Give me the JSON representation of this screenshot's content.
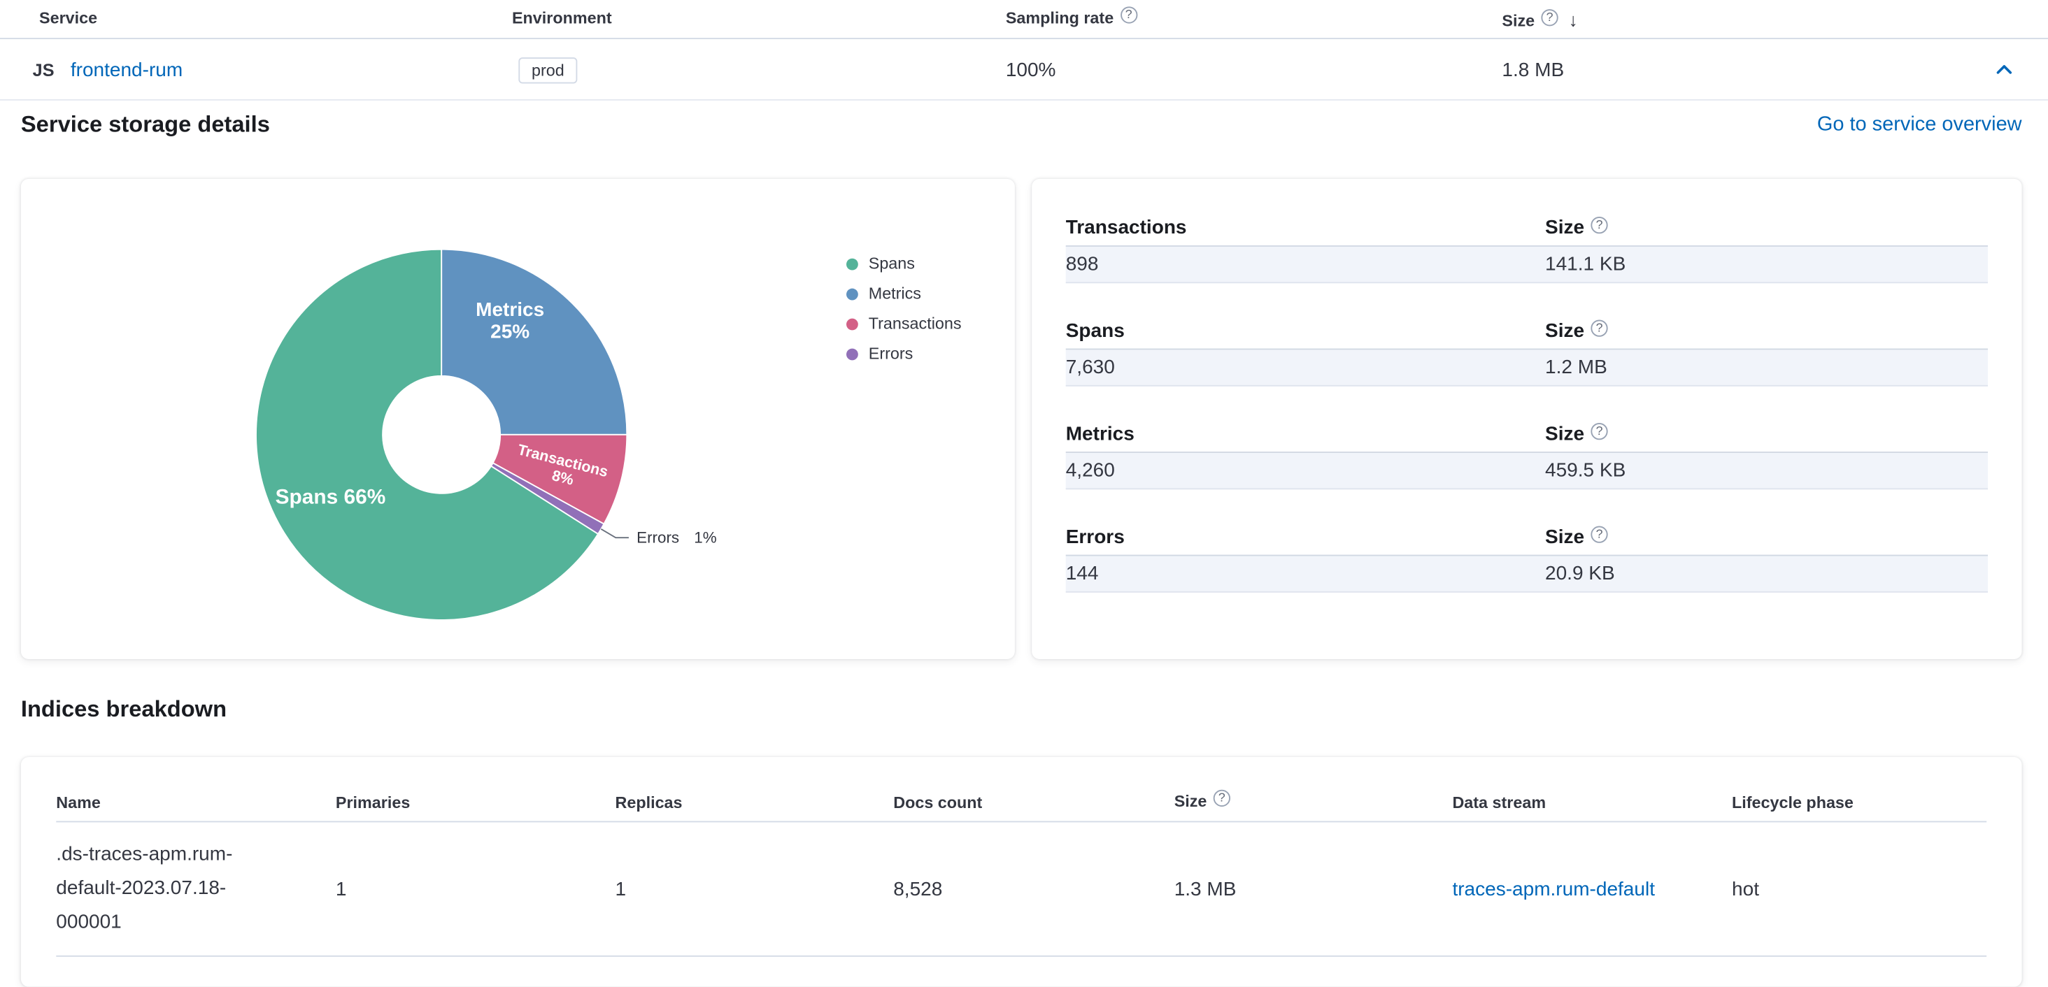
{
  "colors": {
    "link": "#0066b8",
    "text": "#343741",
    "heading": "#1a1c21",
    "row_highlight": "#f1f4fa",
    "spans": "#54B399",
    "metrics": "#6092C0",
    "transactions": "#D36086",
    "errors": "#9170B8"
  },
  "icons": {
    "help": "?",
    "sort_down": "↓"
  },
  "services_table": {
    "columns": [
      "Service",
      "Environment",
      "Sampling rate",
      "Size"
    ],
    "row": {
      "agent_icon": "JS",
      "service_name": "frontend-rum",
      "environment": "prod",
      "sampling_rate": "100%",
      "size": "1.8 MB"
    }
  },
  "storage_details": {
    "title": "Service storage details",
    "overview_link": "Go to service overview"
  },
  "chart_data": {
    "type": "pie",
    "donut": true,
    "categories": [
      "Spans",
      "Metrics",
      "Transactions",
      "Errors"
    ],
    "values": [
      66,
      25,
      8,
      1
    ],
    "unit": "%",
    "colors": [
      "#54B399",
      "#6092C0",
      "#D36086",
      "#9170B8"
    ],
    "legend_position": "right",
    "labels": {
      "spans": "Spans 66%",
      "metrics": "Metrics 25%",
      "transactions": "Transactions 8%",
      "errors": "Errors 1%"
    }
  },
  "stats": [
    {
      "label": "Transactions",
      "size_label": "Size",
      "count": "898",
      "size": "141.1 KB"
    },
    {
      "label": "Spans",
      "size_label": "Size",
      "count": "7,630",
      "size": "1.2 MB"
    },
    {
      "label": "Metrics",
      "size_label": "Size",
      "count": "4,260",
      "size": "459.5 KB"
    },
    {
      "label": "Errors",
      "size_label": "Size",
      "count": "144",
      "size": "20.9 KB"
    }
  ],
  "indices": {
    "title": "Indices breakdown",
    "columns": [
      "Name",
      "Primaries",
      "Replicas",
      "Docs count",
      "Size",
      "Data stream",
      "Lifecycle phase"
    ],
    "rows": [
      {
        "name": ".ds-traces-apm.rum-default-2023.07.18-000001",
        "primaries": "1",
        "replicas": "1",
        "docs_count": "8,528",
        "size": "1.3 MB",
        "data_stream": "traces-apm.rum-default",
        "lifecycle_phase": "hot"
      }
    ]
  }
}
